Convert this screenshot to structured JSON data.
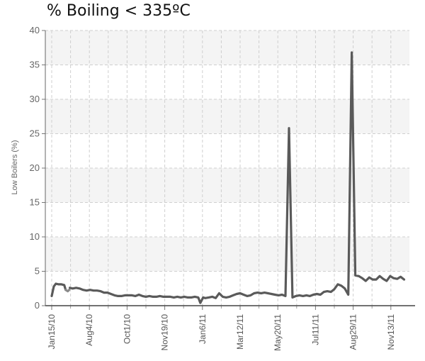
{
  "chart_data": {
    "type": "line",
    "title": "% Boiling < 335ºC",
    "xlabel": "",
    "ylabel": "Low Boilers (%)",
    "ylim": [
      0,
      40
    ],
    "yticks": [
      0,
      5,
      10,
      15,
      20,
      25,
      30,
      35,
      40
    ],
    "xtick_labels": [
      "Jan15/10",
      "Aug4/10",
      "Oct1/10",
      "Nov19/10",
      "Jan6/11",
      "Mar12/11",
      "May20/11",
      "Jul11/11",
      "Aug29/11",
      "Nov13/11"
    ],
    "grid": true,
    "legend": "none",
    "colors": {
      "line": "#5a5a5a",
      "line_light": "#8a8a8a",
      "band": "#f4f4f4",
      "grid": "#cfcfcf"
    },
    "series": [
      {
        "segments": [
          {
            "x": [
              0,
              0.3,
              0.6,
              1.0,
              1.4,
              1.8,
              2.0
            ],
            "y": [
              1.4,
              2.8,
              3.2,
              3.1,
              3.1,
              3.0,
              2.3
            ],
            "shade": "dark"
          },
          {
            "x": [
              2.0,
              2.3,
              2.5
            ],
            "y": [
              2.3,
              2.1,
              2.3
            ],
            "shade": "light"
          },
          {
            "x": [
              2.6,
              3.0,
              3.5,
              4.0,
              4.5,
              5.0,
              5.5,
              6.0,
              6.5,
              7.0,
              7.5,
              8.0,
              8.5,
              9.0,
              9.5,
              10.0,
              10.5,
              11.0,
              11.5,
              12.0,
              12.5,
              13.0,
              13.5,
              14.0,
              14.5,
              15.0,
              15.5,
              16.0,
              16.5,
              17.0,
              17.5,
              18.0,
              18.5,
              19.0,
              19.5,
              20.0,
              20.5,
              21.0,
              21.3,
              21.7,
              22.0,
              22.5,
              23.0,
              23.5,
              24.0,
              24.5,
              25.0,
              25.5,
              26.0,
              26.5,
              27.0,
              27.5,
              28.0,
              28.5,
              29.0,
              29.5,
              30.0,
              30.5,
              31.0,
              31.5,
              32.0,
              32.5,
              33.0,
              33.5,
              34.0,
              34.5,
              35.0,
              35.5,
              36.0,
              36.5,
              37.0,
              37.5,
              38.0,
              38.5,
              39.0,
              39.5,
              40.0,
              40.5,
              41.0,
              41.5,
              42.0,
              42.5,
              43.0,
              43.5,
              44.0,
              44.5,
              45.0,
              45.5,
              46.0,
              46.5,
              47.0,
              47.5,
              48.0,
              48.5,
              49.0,
              49.5,
              50.0,
              50.5
            ],
            "y": [
              2.6,
              2.5,
              2.6,
              2.5,
              2.3,
              2.2,
              2.3,
              2.2,
              2.2,
              2.1,
              1.9,
              1.9,
              1.7,
              1.5,
              1.4,
              1.4,
              1.5,
              1.5,
              1.5,
              1.4,
              1.6,
              1.4,
              1.3,
              1.4,
              1.3,
              1.3,
              1.4,
              1.3,
              1.3,
              1.3,
              1.2,
              1.3,
              1.2,
              1.3,
              1.2,
              1.2,
              1.3,
              1.2,
              0.4,
              1.2,
              1.1,
              1.2,
              1.3,
              1.1,
              1.8,
              1.3,
              1.2,
              1.3,
              1.5,
              1.7,
              1.8,
              1.6,
              1.4,
              1.5,
              1.8,
              1.9,
              1.8,
              1.9,
              1.8,
              1.7,
              1.6,
              1.5,
              1.6,
              1.4,
              25.8,
              1.2,
              1.4,
              1.5,
              1.4,
              1.5,
              1.4,
              1.6,
              1.7,
              1.6,
              2.0,
              2.1,
              2.0,
              2.4,
              3.1,
              2.9,
              2.5,
              1.6,
              36.8,
              4.4,
              4.3,
              4.0,
              3.6,
              4.1,
              3.8,
              3.8,
              4.3,
              3.9,
              3.6,
              4.3,
              4.0,
              3.9,
              4.2,
              3.8
            ],
            "shade": "dark"
          }
        ]
      }
    ]
  }
}
